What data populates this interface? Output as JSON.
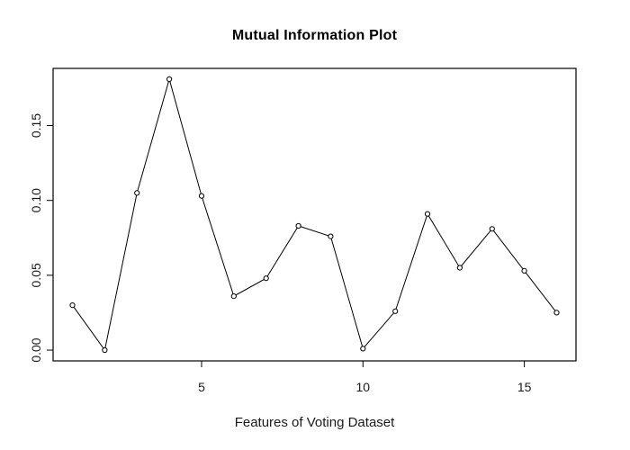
{
  "chart_data": {
    "type": "line",
    "title": "Mutual Information Plot",
    "xlabel": "Features of Voting Dataset",
    "ylabel": "",
    "x": [
      1,
      2,
      3,
      4,
      5,
      6,
      7,
      8,
      9,
      10,
      11,
      12,
      13,
      14,
      15,
      16
    ],
    "values": [
      0.03,
      0.0,
      0.105,
      0.181,
      0.103,
      0.036,
      0.048,
      0.083,
      0.076,
      0.001,
      0.026,
      0.091,
      0.055,
      0.081,
      0.053,
      0.025
    ],
    "x_tick_values": [
      5,
      10,
      15
    ],
    "x_tick_labels": [
      "5",
      "10",
      "15"
    ],
    "y_tick_values": [
      0.0,
      0.05,
      0.1,
      0.15
    ],
    "y_tick_labels": [
      "0.00",
      "0.05",
      "0.10",
      "0.15"
    ],
    "xlim": [
      0.4,
      16.6
    ],
    "ylim": [
      -0.0072,
      0.1882
    ],
    "marker": "open-circle",
    "line_color": "#000000",
    "marker_color": "#000000",
    "axis_color": "#000000",
    "background_color": "#ffffff",
    "grid": false,
    "legend": "none"
  }
}
